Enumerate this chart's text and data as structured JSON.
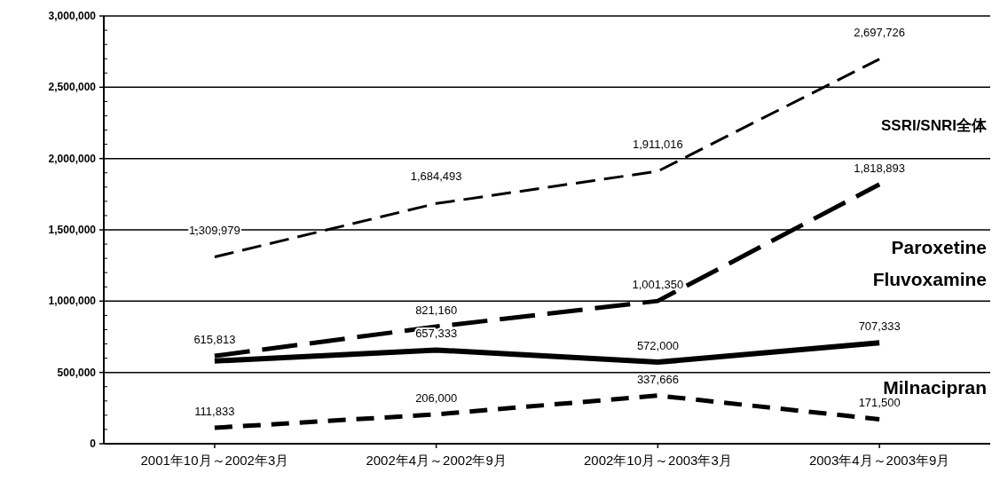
{
  "chart_data": {
    "type": "line",
    "categories": [
      "2001年10月～2002年3月",
      "2002年4月～2002年9月",
      "2002年10月～2003年3月",
      "2003年4月～2003年9月"
    ],
    "series": [
      {
        "name": "SSRI/SNRI全体",
        "color": "#000000",
        "line_style": "dashed",
        "values": [
          1309979,
          1684493,
          1911016,
          2697726
        ],
        "value_labels": [
          "1,309,979",
          "1,684,493",
          "1,911,016",
          "2,697,726"
        ]
      },
      {
        "name": "Paroxetine",
        "color": "#000000",
        "line_style": "dashed",
        "values": [
          615813,
          821160,
          1001350,
          1818893
        ],
        "value_labels": [
          "615,813",
          "821,160",
          "1,001,350",
          "1,818,893"
        ]
      },
      {
        "name": "Fluvoxamine",
        "color": "#000000",
        "line_style": "solid",
        "values": [
          580000,
          657333,
          572000,
          707333
        ],
        "value_labels": [
          null,
          "657,333",
          "572,000",
          "707,333"
        ]
      },
      {
        "name": "Milnacipran",
        "color": "#000000",
        "line_style": "dashed",
        "values": [
          111833,
          206000,
          337666,
          171500
        ],
        "value_labels": [
          "111,833",
          "206,000",
          "337,666",
          "171,500"
        ]
      }
    ],
    "ylim": [
      0,
      3000000
    ],
    "yticks": [
      {
        "value": 0,
        "label": "0"
      },
      {
        "value": 500000,
        "label": "500,000"
      },
      {
        "value": 1000000,
        "label": "1,000,000"
      },
      {
        "value": 1500000,
        "label": "1,500,000"
      },
      {
        "value": 2000000,
        "label": "2,000,000"
      },
      {
        "value": 2500000,
        "label": "2,500,000"
      },
      {
        "value": 3000000,
        "label": "3,000,000"
      }
    ],
    "grid": "y",
    "legend": false,
    "marker": "none"
  }
}
